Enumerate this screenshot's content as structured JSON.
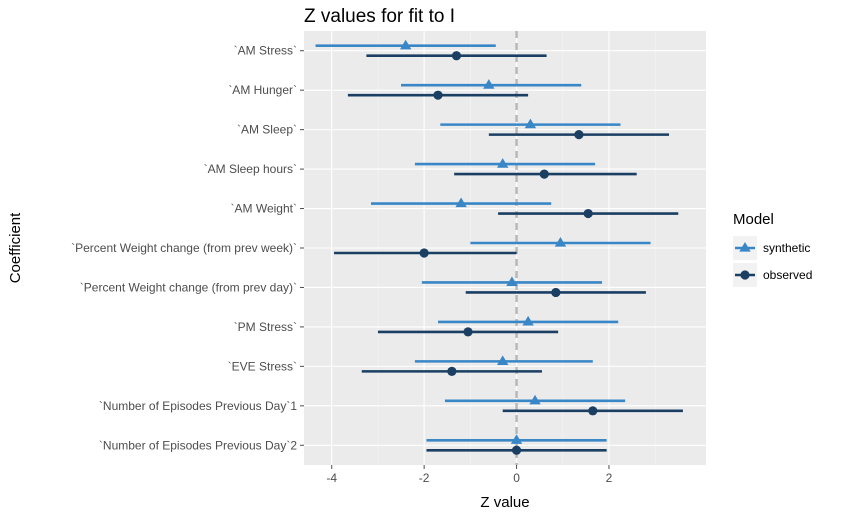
{
  "chart_data": {
    "type": "scatter",
    "title": "Z values for fit to I",
    "xlabel": "Z value",
    "ylabel": "Coefficient",
    "xlim": [
      -4.6,
      4.1
    ],
    "xticks": [
      -4,
      -2,
      0,
      2
    ],
    "xtick_labels": [
      "-4",
      "-2",
      "0",
      "2"
    ],
    "reference_line_x": 0,
    "grid": true,
    "legend": {
      "title": "Model",
      "placement": "right"
    },
    "categories": [
      "`AM Stress`",
      "`AM Hunger`",
      "`AM Sleep`",
      "`AM Sleep hours`",
      "`AM Weight`",
      "`Percent Weight change (from prev week)`",
      "`Percent Weight change (from prev day)`",
      "`PM Stress`",
      "`EVE Stress`",
      "`Number of Episodes Previous Day`1",
      "`Number of Episodes Previous Day`2"
    ],
    "series": [
      {
        "name": "synthetic",
        "marker": "triangle",
        "color": "#3a87c8",
        "estimate": [
          -2.4,
          -0.6,
          0.3,
          -0.3,
          -1.2,
          0.95,
          -0.1,
          0.25,
          -0.3,
          0.4,
          0.0
        ],
        "lower": [
          -4.35,
          -2.5,
          -1.65,
          -2.2,
          -3.15,
          -1.0,
          -2.05,
          -1.7,
          -2.2,
          -1.55,
          -1.95
        ],
        "upper": [
          -0.45,
          1.4,
          2.25,
          1.7,
          0.75,
          2.9,
          1.85,
          2.2,
          1.65,
          2.35,
          1.95
        ]
      },
      {
        "name": "observed",
        "marker": "circle",
        "color": "#1b3f63",
        "estimate": [
          -1.3,
          -1.7,
          1.35,
          0.6,
          1.55,
          -2.0,
          0.85,
          -1.05,
          -1.4,
          1.65,
          0.0
        ],
        "lower": [
          -3.25,
          -3.65,
          -0.6,
          -1.35,
          -0.4,
          -3.95,
          -1.1,
          -3.0,
          -3.35,
          -0.3,
          -1.95
        ],
        "upper": [
          0.65,
          0.25,
          3.3,
          2.6,
          3.5,
          0.0,
          2.8,
          0.9,
          0.55,
          3.6,
          1.95
        ]
      }
    ]
  }
}
